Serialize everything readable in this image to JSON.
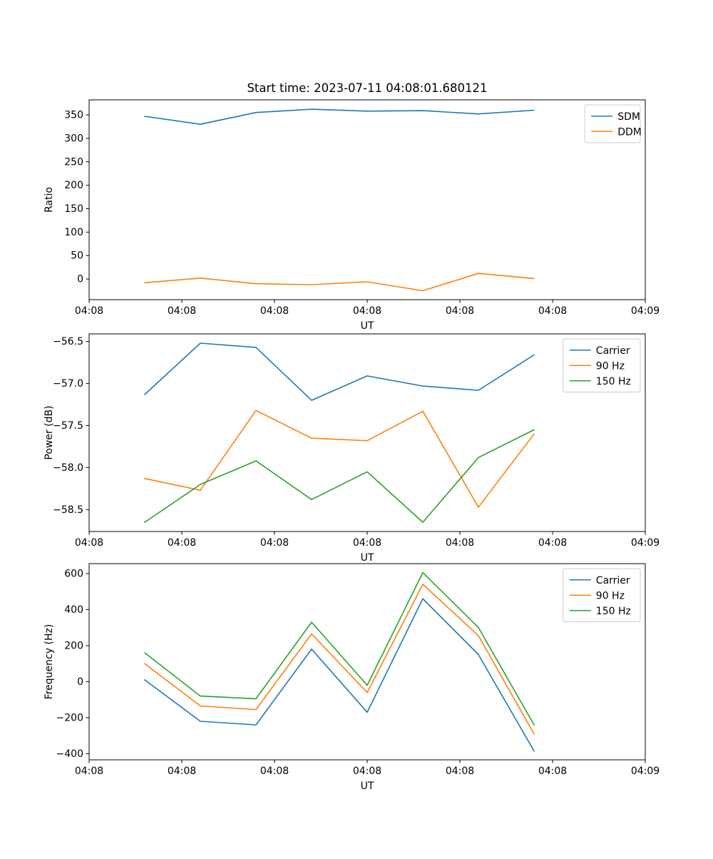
{
  "figure": {
    "title": "Start time: 2023-07-11 04:08:01.680121",
    "background": "#ffffff"
  },
  "colors": {
    "blue": "#1f77b4",
    "orange": "#ff7f0e",
    "green": "#2ca02c",
    "legend_edge": "#cccccc",
    "axes": "#000000"
  },
  "chart_data": [
    {
      "type": "line",
      "title": "Start time: 2023-07-11 04:08:01.680121",
      "xlabel": "UT",
      "ylabel": "Ratio",
      "grid": false,
      "legend_position": "upper right",
      "x": [
        6,
        12,
        18,
        24,
        30,
        36,
        42,
        48
      ],
      "xlim": [
        0,
        60
      ],
      "xtick_values": [
        0,
        10,
        20,
        30,
        40,
        50,
        60
      ],
      "xtick_labels": [
        "04:08",
        "04:08",
        "04:08",
        "04:08",
        "04:08",
        "04:08",
        "04:09"
      ],
      "ylim": [
        -44,
        382
      ],
      "ytick_values": [
        0,
        50,
        100,
        150,
        200,
        250,
        300,
        350
      ],
      "ytick_labels": [
        "0",
        "50",
        "100",
        "150",
        "200",
        "250",
        "300",
        "350"
      ],
      "legend": {
        "entries": [
          "SDM",
          "DDM"
        ]
      },
      "series": [
        {
          "name": "SDM",
          "color": "#1f77b4",
          "values": [
            347,
            330,
            355,
            362,
            358,
            359,
            352,
            360
          ]
        },
        {
          "name": "DDM",
          "color": "#ff7f0e",
          "values": [
            -8,
            2,
            -10,
            -12,
            -6,
            -25,
            12,
            1
          ]
        }
      ]
    },
    {
      "type": "line",
      "title": "",
      "xlabel": "UT",
      "ylabel": "Power (dB)",
      "grid": false,
      "legend_position": "upper right",
      "x": [
        6,
        12,
        18,
        24,
        30,
        36,
        42,
        48
      ],
      "xlim": [
        0,
        60
      ],
      "xtick_values": [
        0,
        10,
        20,
        30,
        40,
        50,
        60
      ],
      "xtick_labels": [
        "04:08",
        "04:08",
        "04:08",
        "04:08",
        "04:08",
        "04:08",
        "04:09"
      ],
      "ylim": [
        -58.76,
        -56.41
      ],
      "ytick_values": [
        -58.5,
        -58.0,
        -57.5,
        -57.0,
        -56.5
      ],
      "ytick_labels": [
        "−58.5",
        "−58.0",
        "−57.5",
        "−57.0",
        "−56.5"
      ],
      "legend": {
        "entries": [
          "Carrier",
          "90 Hz",
          "150 Hz"
        ]
      },
      "series": [
        {
          "name": "Carrier",
          "color": "#1f77b4",
          "values": [
            -57.13,
            -56.52,
            -56.57,
            -57.2,
            -56.91,
            -57.03,
            -57.08,
            -56.66
          ]
        },
        {
          "name": "90 Hz",
          "color": "#ff7f0e",
          "values": [
            -58.13,
            -58.27,
            -57.32,
            -57.65,
            -57.68,
            -57.33,
            -58.47,
            -57.6
          ]
        },
        {
          "name": "150 Hz",
          "color": "#2ca02c",
          "values": [
            -58.65,
            -58.2,
            -57.92,
            -58.38,
            -58.05,
            -58.65,
            -57.88,
            -57.55
          ]
        }
      ]
    },
    {
      "type": "line",
      "title": "",
      "xlabel": "UT",
      "ylabel": "Frequency (Hz)",
      "grid": false,
      "legend_position": "upper right",
      "x": [
        6,
        12,
        18,
        24,
        30,
        36,
        42,
        48
      ],
      "xlim": [
        0,
        60
      ],
      "xtick_values": [
        0,
        10,
        20,
        30,
        40,
        50,
        60
      ],
      "xtick_labels": [
        "04:08",
        "04:08",
        "04:08",
        "04:08",
        "04:08",
        "04:08",
        "04:09"
      ],
      "ylim": [
        -434,
        655
      ],
      "ytick_values": [
        -400,
        -200,
        0,
        200,
        400,
        600
      ],
      "ytick_labels": [
        "−400",
        "−200",
        "0",
        "200",
        "400",
        "600"
      ],
      "legend": {
        "entries": [
          "Carrier",
          "90 Hz",
          "150 Hz"
        ]
      },
      "series": [
        {
          "name": "Carrier",
          "color": "#1f77b4",
          "values": [
            10,
            -220,
            -240,
            180,
            -170,
            460,
            150,
            -385
          ]
        },
        {
          "name": "90 Hz",
          "color": "#ff7f0e",
          "values": [
            100,
            -135,
            -155,
            265,
            -60,
            540,
            255,
            -290
          ]
        },
        {
          "name": "150 Hz",
          "color": "#2ca02c",
          "values": [
            160,
            -80,
            -95,
            330,
            -20,
            605,
            300,
            -240
          ]
        }
      ]
    }
  ]
}
